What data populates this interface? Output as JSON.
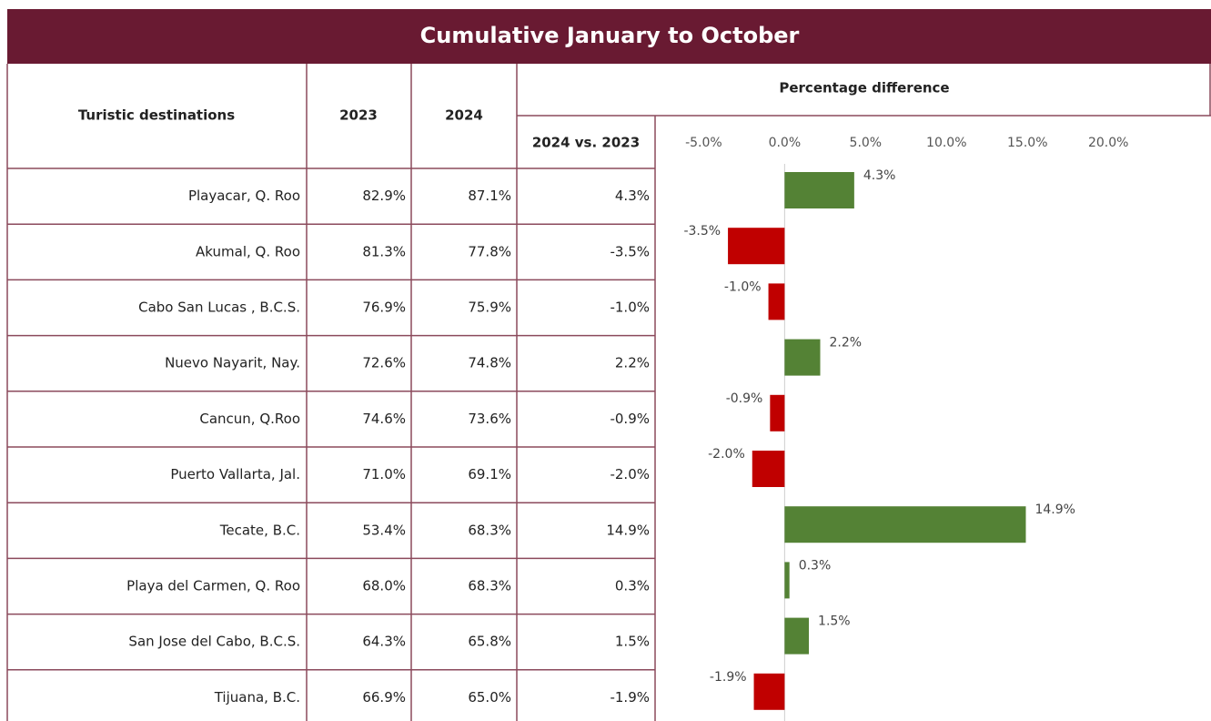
{
  "header": {
    "title": "Cumulative January to October"
  },
  "table": {
    "columns": [
      "Turistic destinations",
      "2023",
      "2024",
      "Percentage difference",
      "2024 vs. 2023"
    ],
    "rows": [
      [
        "Playacar, Q. Roo",
        "82.9%",
        "87.1%",
        "4.3%"
      ],
      [
        "Akumal, Q. Roo",
        "81.3%",
        "77.8%",
        "-3.5%"
      ],
      [
        "Cabo San Lucas , B.C.S.",
        "76.9%",
        "75.9%",
        "-1.0%"
      ],
      [
        "Nuevo Nayarit, Nay.",
        "72.6%",
        "74.8%",
        "2.2%"
      ],
      [
        "Cancun, Q.Roo",
        "74.6%",
        "73.6%",
        "-0.9%"
      ],
      [
        "Puerto Vallarta, Jal.",
        "71.0%",
        "69.1%",
        "-2.0%"
      ],
      [
        "Tecate, B.C.",
        "53.4%",
        "68.3%",
        "14.9%"
      ],
      [
        "Playa del Carmen, Q. Roo",
        "68.0%",
        "68.3%",
        "0.3%"
      ],
      [
        "San Jose del Cabo, B.C.S.",
        "64.3%",
        "65.8%",
        "1.5%"
      ],
      [
        "Tijuana, B.C.",
        "66.9%",
        "65.0%",
        "-1.9%"
      ]
    ]
  },
  "chart_data": {
    "type": "hbar",
    "values": [
      4.3,
      -3.5,
      -1.0,
      2.2,
      -0.9,
      -2.0,
      14.9,
      0.3,
      1.5,
      -1.9
    ],
    "value_labels": [
      "4.3%",
      "-3.5%",
      "-1.0%",
      "2.2%",
      "-0.9%",
      "-2.0%",
      "14.9%",
      "0.3%",
      "1.5%",
      "-1.9%"
    ],
    "colors": {
      "positive": "#548235",
      "negative": "#c00000"
    },
    "xlim": [
      -8,
      26
    ],
    "xticks": [
      {
        "value": -5,
        "label": "-5.0%"
      },
      {
        "value": 0,
        "label": "0.0%"
      },
      {
        "value": 5,
        "label": "5.0%"
      },
      {
        "value": 10,
        "label": "10.0%"
      },
      {
        "value": 15,
        "label": "15.0%"
      },
      {
        "value": 20,
        "label": "20.0%"
      }
    ]
  }
}
